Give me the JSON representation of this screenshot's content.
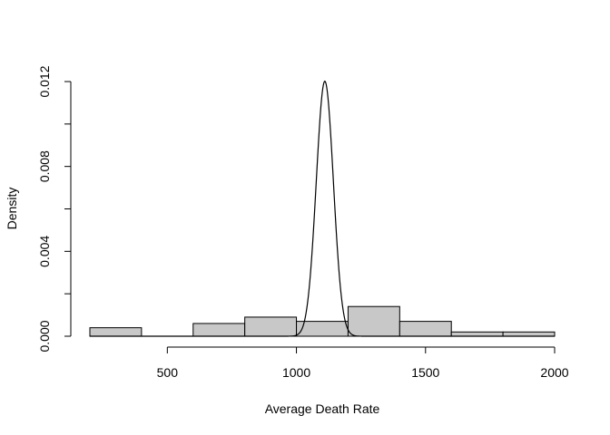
{
  "chart_data": {
    "type": "bar",
    "title": "",
    "xlabel": "Average Death Rate",
    "ylabel": "Density",
    "xlim": [
      200,
      2000
    ],
    "ylim": [
      0,
      0.012
    ],
    "x_ticks": [
      500,
      1000,
      1500,
      2000
    ],
    "x_tick_labels": [
      "500",
      "1000",
      "1500",
      "2000"
    ],
    "y_ticks": [
      0,
      0.004,
      0.008,
      0.012
    ],
    "y_tick_labels": [
      "0.000",
      "0.004",
      "0.008",
      "0.012"
    ],
    "grid": false,
    "bar_color": "#c8c8c8",
    "bins": [
      {
        "start": 200,
        "end": 400,
        "density": 0.0004
      },
      {
        "start": 400,
        "end": 600,
        "density": 0.0
      },
      {
        "start": 600,
        "end": 800,
        "density": 0.0006
      },
      {
        "start": 800,
        "end": 1000,
        "density": 0.0009
      },
      {
        "start": 1000,
        "end": 1200,
        "density": 0.0007
      },
      {
        "start": 1200,
        "end": 1400,
        "density": 0.0014
      },
      {
        "start": 1400,
        "end": 1600,
        "density": 0.0007
      },
      {
        "start": 1600,
        "end": 1800,
        "density": 0.0002
      },
      {
        "start": 1800,
        "end": 2000,
        "density": 0.0002
      }
    ],
    "density_curve": {
      "type": "normal",
      "mean": 1110,
      "sd": 33.2,
      "x_range": [
        200,
        2000
      ]
    }
  }
}
